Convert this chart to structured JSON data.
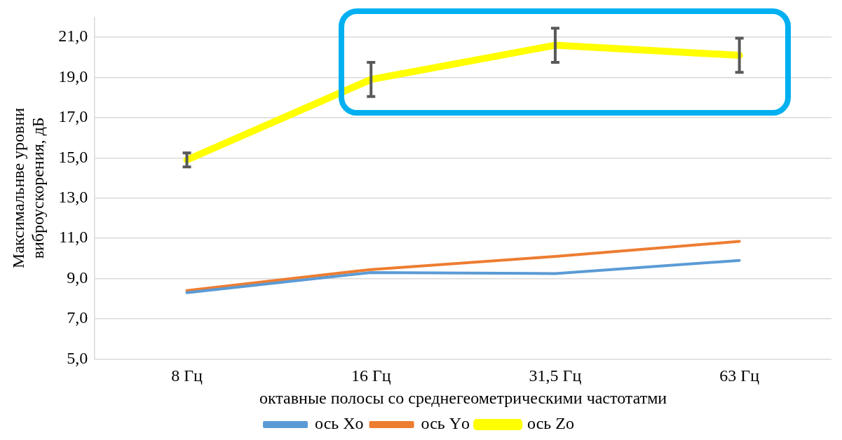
{
  "chart_data": {
    "type": "line",
    "xlabel": "октавные полосы со среднегеометрическими частотатми",
    "ylabel": "Максимальнве уровни виброускорения, дБ",
    "categories": [
      "8 Гц",
      "16 Гц",
      "31,5 Гц",
      "63 Гц"
    ],
    "series": [
      {
        "name": "ось Xо",
        "color": "#5b9bd5",
        "values": [
          8.3,
          9.3,
          9.25,
          9.9
        ]
      },
      {
        "name": "ось Yо",
        "color": "#ed7d31",
        "values": [
          8.4,
          9.45,
          10.1,
          10.85
        ]
      },
      {
        "name": "ось Zо",
        "color": "#ffff00",
        "values": [
          14.9,
          18.9,
          20.6,
          20.1
        ],
        "errors": [
          0.35,
          0.85,
          0.85,
          0.85
        ]
      }
    ],
    "ylim": [
      5,
      22
    ],
    "yticks": [
      {
        "value": 5,
        "label": "5,0"
      },
      {
        "value": 7,
        "label": "7,0"
      },
      {
        "value": 9,
        "label": "9,0"
      },
      {
        "value": 11,
        "label": "11,0"
      },
      {
        "value": 13,
        "label": "13,0"
      },
      {
        "value": 15,
        "label": "15,0"
      },
      {
        "value": 17,
        "label": "17,0"
      },
      {
        "value": 19,
        "label": "19,0"
      },
      {
        "value": 21,
        "label": "21,0"
      }
    ],
    "grid": "y",
    "legend": "bottom",
    "marker": "none",
    "line_style": "solid"
  }
}
